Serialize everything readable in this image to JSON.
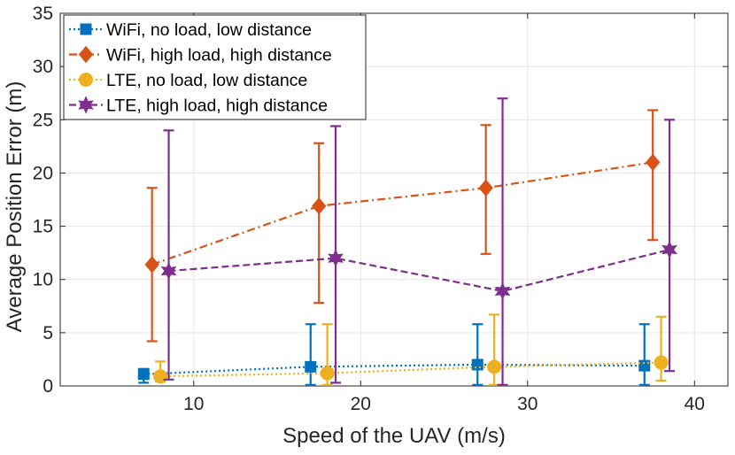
{
  "chart_data": {
    "type": "line",
    "title": "",
    "xlabel": "Speed of the UAV (m/s)",
    "ylabel": "Average Position Error (m)",
    "xlim": [
      2,
      42
    ],
    "ylim": [
      0,
      35
    ],
    "xticks": [
      10,
      20,
      30,
      40
    ],
    "yticks": [
      0,
      5,
      10,
      15,
      20,
      25,
      30,
      35
    ],
    "grid": true,
    "legend_position": "top-left",
    "series": [
      {
        "name": "WiFi, no load, low distance",
        "color": "#0072BD",
        "marker": "square",
        "line_style": "dotted",
        "x": [
          7,
          17,
          27,
          37
        ],
        "y": [
          1.1,
          1.8,
          2.0,
          1.9
        ],
        "err_low": [
          0.3,
          0.1,
          0.1,
          0.1
        ],
        "err_high": [
          1.6,
          5.8,
          5.8,
          5.8
        ]
      },
      {
        "name": "WiFi, high load, high distance",
        "color": "#D95319",
        "marker": "diamond",
        "line_style": "dashdot",
        "x": [
          7.5,
          17.5,
          27.5,
          37.5
        ],
        "y": [
          11.4,
          16.9,
          18.6,
          21.0
        ],
        "err_low": [
          4.2,
          7.8,
          12.4,
          13.7
        ],
        "err_high": [
          18.6,
          22.8,
          24.5,
          25.9
        ]
      },
      {
        "name": "LTE, no load, low distance",
        "color": "#EDB120",
        "marker": "circle",
        "line_style": "dotted",
        "x": [
          8,
          18,
          28,
          38
        ],
        "y": [
          0.9,
          1.2,
          1.8,
          2.2
        ],
        "err_low": [
          0.4,
          0.1,
          0.1,
          0.5
        ],
        "err_high": [
          2.3,
          5.8,
          6.7,
          6.5
        ]
      },
      {
        "name": "LTE, high load, high distance",
        "color": "#7E2F8E",
        "marker": "star",
        "line_style": "dashed",
        "x": [
          8.5,
          18.5,
          28.5,
          38.5
        ],
        "y": [
          10.8,
          12.0,
          8.9,
          12.8
        ],
        "err_low": [
          0.6,
          0.3,
          0.1,
          1.4
        ],
        "err_high": [
          24.0,
          24.4,
          27.0,
          25.0
        ]
      }
    ]
  }
}
